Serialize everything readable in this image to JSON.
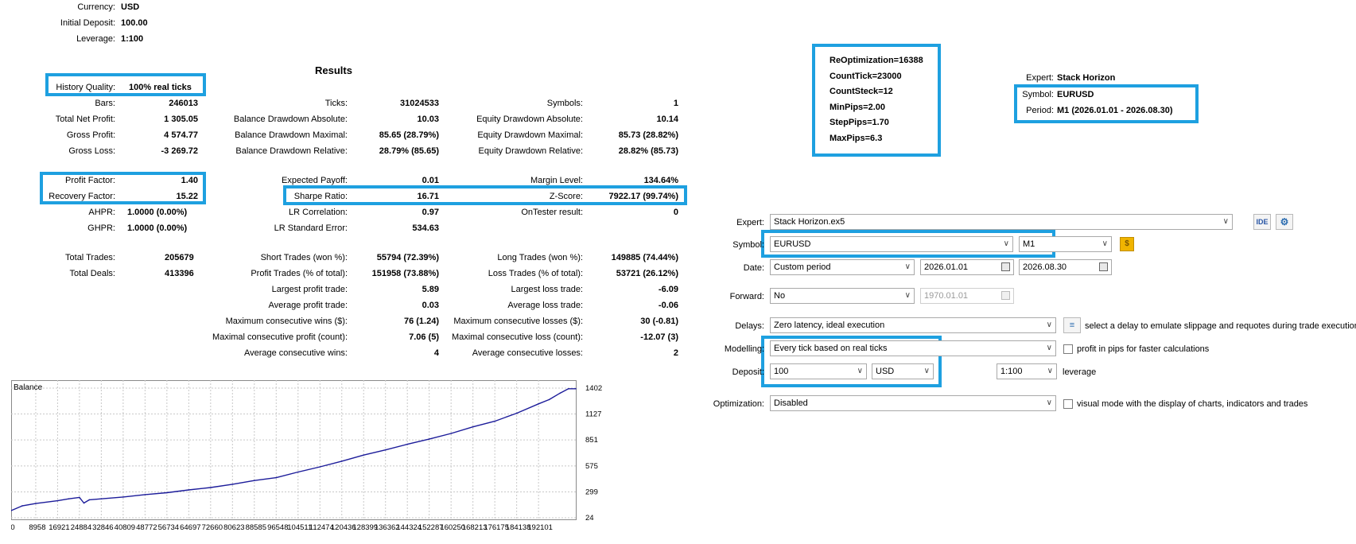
{
  "account": {
    "currency_label": "Currency:",
    "currency": "USD",
    "deposit_label": "Initial Deposit:",
    "deposit": "100.00",
    "leverage_label": "Leverage:",
    "leverage": "1:100"
  },
  "results": {
    "title": "Results",
    "history_quality_label": "History Quality:",
    "history_quality": "100% real ticks",
    "col1": [
      {
        "label": "Bars:",
        "value": "246013"
      },
      {
        "label": "Total Net Profit:",
        "value": "1 305.05"
      },
      {
        "label": "Gross Profit:",
        "value": "4 574.77"
      },
      {
        "label": "Gross Loss:",
        "value": "-3 269.72"
      }
    ],
    "col2": [
      {
        "label": "Ticks:",
        "value": "31024533"
      },
      {
        "label": "Balance Drawdown Absolute:",
        "value": "10.03"
      },
      {
        "label": "Balance Drawdown Maximal:",
        "value": "85.65 (28.79%)"
      },
      {
        "label": "Balance Drawdown Relative:",
        "value": "28.79% (85.65)"
      }
    ],
    "col3": [
      {
        "label": "Symbols:",
        "value": "1"
      },
      {
        "label": "Equity Drawdown Absolute:",
        "value": "10.14"
      },
      {
        "label": "Equity Drawdown Maximal:",
        "value": "85.73 (28.82%)"
      },
      {
        "label": "Equity Drawdown Relative:",
        "value": "28.82% (85.73)"
      }
    ],
    "profit_factor_label": "Profit Factor:",
    "profit_factor": "1.40",
    "recovery_factor_label": "Recovery Factor:",
    "recovery_factor": "15.22",
    "ahpr_label": "AHPR:",
    "ahpr": "1.0000 (0.00%)",
    "ghpr_label": "GHPR:",
    "ghpr": "1.0000 (0.00%)",
    "expected_payoff_label": "Expected Payoff:",
    "expected_payoff": "0.01",
    "sharpe_label": "Sharpe Ratio:",
    "sharpe": "16.71",
    "lr_corr_label": "LR Correlation:",
    "lr_corr": "0.97",
    "lr_err_label": "LR Standard Error:",
    "lr_err": "534.63",
    "margin_level_label": "Margin Level:",
    "margin_level": "134.64%",
    "zscore_label": "Z-Score:",
    "zscore": "7922.17 (99.74%)",
    "ontester_label": "OnTester result:",
    "ontester": "0",
    "total_trades_label": "Total Trades:",
    "total_trades": "205679",
    "total_deals_label": "Total Deals:",
    "total_deals": "413396",
    "col2b": [
      {
        "label": "Short Trades (won %):",
        "value": "55794 (72.39%)"
      },
      {
        "label": "Profit Trades (% of total):",
        "value": "151958 (73.88%)"
      },
      {
        "label": "Largest profit trade:",
        "value": "5.89"
      },
      {
        "label": "Average profit trade:",
        "value": "0.03"
      },
      {
        "label": "Maximum consecutive wins ($):",
        "value": "76 (1.24)"
      },
      {
        "label": "Maximal consecutive profit (count):",
        "value": "7.06 (5)"
      },
      {
        "label": "Average consecutive wins:",
        "value": "4"
      }
    ],
    "col3b": [
      {
        "label": "Long Trades (won %):",
        "value": "149885 (74.44%)"
      },
      {
        "label": "Loss Trades (% of total):",
        "value": "53721 (26.12%)"
      },
      {
        "label": "Largest loss trade:",
        "value": "-6.09"
      },
      {
        "label": "Average loss trade:",
        "value": "-0.06"
      },
      {
        "label": "Maximum consecutive losses ($):",
        "value": "30 (-0.81)"
      },
      {
        "label": "Maximal consecutive loss (count):",
        "value": "-12.07 (3)"
      },
      {
        "label": "Average consecutive losses:",
        "value": "2"
      }
    ]
  },
  "params": [
    "ReOptimization=16388",
    "CountTick=23000",
    "CountSteck=12",
    "MinPips=2.00",
    "StepPips=1.70",
    "MaxPips=6.3"
  ],
  "expert_info": {
    "expert_label": "Expert:",
    "expert": "Stack Horizon",
    "symbol_label": "Symbol:",
    "symbol": "EURUSD",
    "period_label": "Period:",
    "period": "M1 (2026.01.01 - 2026.08.30)"
  },
  "settings": {
    "expert_label": "Expert:",
    "expert_value": "Stack Horizon.ex5",
    "ide_label": "IDE",
    "symbol_label": "Symbol:",
    "symbol_value": "EURUSD",
    "timeframe_value": "M1",
    "date_label": "Date:",
    "date_mode": "Custom period",
    "date_from": "2026.01.01",
    "date_to": "2026.08.30",
    "forward_label": "Forward:",
    "forward_value": "No",
    "forward_date": "1970.01.01",
    "delays_label": "Delays:",
    "delays_value": "Zero latency, ideal execution",
    "delays_hint": "select a delay to emulate slippage and requotes during trade execution",
    "modelling_label": "Modelling:",
    "modelling_value": "Every tick based on real ticks",
    "profit_pips_label": "profit in pips for faster calculations",
    "deposit_label": "Deposit:",
    "deposit_value": "100",
    "deposit_currency": "USD",
    "leverage_value": "1:100",
    "leverage_label": "leverage",
    "optimization_label": "Optimization:",
    "optimization_value": "Disabled",
    "visual_label": "visual mode with the display of charts, indicators and trades"
  },
  "colors": {
    "highlight": "#1ea0e0",
    "balance_line": "#1c1c9a",
    "symbol_button": "#f0b400"
  },
  "chart_data": {
    "type": "line",
    "title": "Balance",
    "y_ticks": [
      "1402",
      "1127",
      "851",
      "575",
      "299",
      "24"
    ],
    "x_ticks": [
      "0",
      "8958",
      "16921",
      "24884",
      "32846",
      "40809",
      "48772",
      "56734",
      "64697",
      "72660",
      "80623",
      "88585",
      "96548",
      "104511",
      "112474",
      "120436",
      "128399",
      "136362",
      "144324",
      "152287",
      "160250",
      "168213",
      "176175",
      "184138",
      "192101"
    ],
    "ylim": [
      24,
      1402
    ],
    "xlim": [
      0,
      205679
    ],
    "grid": true,
    "series": [
      {
        "x": [
          0,
          4000,
          8958,
          16921,
          21000,
          24884,
          26500,
          28500,
          32846,
          40809,
          48772,
          56734,
          64697,
          72660,
          80623,
          88585,
          96548,
          104511,
          112474,
          120436,
          128399,
          136362,
          144324,
          152287,
          160250,
          168213,
          176175,
          184138,
          192101,
          196000,
          200000,
          203000,
          205679
        ],
        "y": [
          100,
          150,
          175,
          205,
          225,
          240,
          180,
          215,
          225,
          245,
          270,
          290,
          320,
          345,
          380,
          420,
          450,
          510,
          565,
          625,
          690,
          745,
          805,
          860,
          920,
          990,
          1050,
          1135,
          1235,
          1280,
          1350,
          1395,
          1395
        ]
      }
    ]
  }
}
